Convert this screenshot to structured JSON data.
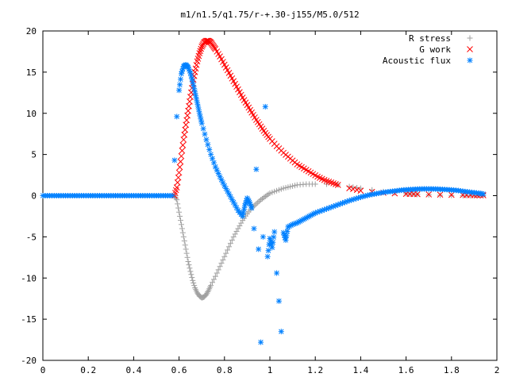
{
  "chart_data": {
    "type": "scatter",
    "title": "m1/n1.5/q1.75/r-+.30-j155/M5.0/512",
    "xlabel": "",
    "ylabel": "",
    "xlim": [
      0,
      2
    ],
    "ylim": [
      -20,
      20
    ],
    "x_ticks": [
      "0",
      "0.2",
      "0.4",
      "0.6",
      "0.8",
      "1",
      "1.2",
      "1.4",
      "1.6",
      "1.8",
      "2"
    ],
    "y_ticks": [
      "20",
      "15",
      "10",
      "5",
      "0",
      "-5",
      "-10",
      "-15",
      "-20"
    ],
    "grid": false,
    "legend_position": "top-right",
    "series": [
      {
        "name": "R stress",
        "marker": "plus",
        "color": "#a0a0a0",
        "points": [
          [
            0.58,
            0
          ],
          [
            0.59,
            -0.5
          ],
          [
            0.6,
            -2.0
          ],
          [
            0.61,
            -3.5
          ],
          [
            0.62,
            -5.0
          ],
          [
            0.63,
            -6.5
          ],
          [
            0.64,
            -8.0
          ],
          [
            0.65,
            -9.2
          ],
          [
            0.66,
            -10.3
          ],
          [
            0.67,
            -11.2
          ],
          [
            0.68,
            -11.8
          ],
          [
            0.69,
            -12.2
          ],
          [
            0.7,
            -12.4
          ],
          [
            0.71,
            -12.3
          ],
          [
            0.72,
            -12.0
          ],
          [
            0.73,
            -11.5
          ],
          [
            0.74,
            -10.9
          ],
          [
            0.76,
            -9.8
          ],
          [
            0.78,
            -8.6
          ],
          [
            0.8,
            -7.4
          ],
          [
            0.82,
            -6.2
          ],
          [
            0.84,
            -5.0
          ],
          [
            0.86,
            -4.0
          ],
          [
            0.88,
            -3.0
          ],
          [
            0.9,
            -2.2
          ],
          [
            0.92,
            -1.5
          ],
          [
            0.94,
            -1.0
          ],
          [
            0.96,
            -0.5
          ],
          [
            0.98,
            -0.1
          ],
          [
            1.0,
            0.3
          ],
          [
            1.03,
            0.6
          ],
          [
            1.06,
            0.9
          ],
          [
            1.09,
            1.1
          ],
          [
            1.12,
            1.3
          ],
          [
            1.16,
            1.4
          ],
          [
            1.2,
            1.4
          ],
          [
            1.25,
            1.4
          ],
          [
            1.3,
            1.3
          ],
          [
            1.35,
            1.1
          ],
          [
            1.4,
            0.9
          ],
          [
            1.45,
            0.7
          ],
          [
            1.5,
            0.5
          ],
          [
            1.55,
            0.35
          ],
          [
            1.6,
            0.25
          ],
          [
            1.65,
            0.15
          ],
          [
            1.7,
            0.1
          ],
          [
            1.75,
            0.05
          ],
          [
            1.8,
            0.03
          ],
          [
            1.85,
            0.02
          ],
          [
            1.9,
            0.01
          ],
          [
            1.94,
            0
          ]
        ]
      },
      {
        "name": "G work",
        "marker": "cross",
        "color": "#ff0000",
        "points": [
          [
            0.58,
            0
          ],
          [
            0.59,
            1.0
          ],
          [
            0.6,
            2.8
          ],
          [
            0.61,
            4.8
          ],
          [
            0.62,
            6.8
          ],
          [
            0.63,
            8.6
          ],
          [
            0.64,
            10.3
          ],
          [
            0.65,
            12.0
          ],
          [
            0.66,
            13.6
          ],
          [
            0.67,
            15.0
          ],
          [
            0.68,
            16.3
          ],
          [
            0.69,
            17.3
          ],
          [
            0.7,
            18.1
          ],
          [
            0.71,
            18.6
          ],
          [
            0.72,
            18.8
          ],
          [
            0.73,
            18.8
          ],
          [
            0.74,
            18.6
          ],
          [
            0.75,
            18.2
          ],
          [
            0.76,
            17.8
          ],
          [
            0.78,
            16.9
          ],
          [
            0.8,
            15.9
          ],
          [
            0.82,
            14.9
          ],
          [
            0.84,
            13.9
          ],
          [
            0.86,
            12.9
          ],
          [
            0.88,
            11.9
          ],
          [
            0.9,
            11.0
          ],
          [
            0.92,
            10.1
          ],
          [
            0.94,
            9.2
          ],
          [
            0.96,
            8.4
          ],
          [
            0.98,
            7.6
          ],
          [
            1.0,
            6.9
          ],
          [
            1.03,
            6.0
          ],
          [
            1.06,
            5.2
          ],
          [
            1.09,
            4.5
          ],
          [
            1.12,
            3.8
          ],
          [
            1.15,
            3.3
          ],
          [
            1.18,
            2.8
          ],
          [
            1.21,
            2.3
          ],
          [
            1.24,
            1.9
          ],
          [
            1.27,
            1.6
          ],
          [
            1.3,
            1.3
          ],
          [
            1.35,
            0.9
          ],
          [
            1.4,
            0.6
          ],
          [
            1.45,
            0.45
          ],
          [
            1.5,
            0.35
          ],
          [
            1.55,
            0.28
          ],
          [
            1.6,
            0.22
          ],
          [
            1.65,
            0.18
          ],
          [
            1.7,
            0.15
          ],
          [
            1.75,
            0.12
          ],
          [
            1.8,
            0.1
          ],
          [
            1.85,
            0.08
          ],
          [
            1.9,
            0.06
          ],
          [
            1.94,
            0.05
          ]
        ]
      },
      {
        "name": "Acoustic flux",
        "marker": "star",
        "color": "#0080ff",
        "points": [
          [
            0.0,
            0
          ],
          [
            0.03,
            0
          ],
          [
            0.06,
            0
          ],
          [
            0.09,
            0
          ],
          [
            0.12,
            0
          ],
          [
            0.15,
            0
          ],
          [
            0.18,
            0
          ],
          [
            0.21,
            0
          ],
          [
            0.24,
            0
          ],
          [
            0.27,
            0
          ],
          [
            0.3,
            0
          ],
          [
            0.33,
            0
          ],
          [
            0.36,
            0
          ],
          [
            0.39,
            0
          ],
          [
            0.42,
            0
          ],
          [
            0.45,
            0
          ],
          [
            0.48,
            0
          ],
          [
            0.51,
            0
          ],
          [
            0.54,
            0
          ],
          [
            0.57,
            0
          ],
          [
            0.58,
            4.3
          ],
          [
            0.59,
            9.6
          ],
          [
            0.6,
            12.8
          ],
          [
            0.61,
            14.8
          ],
          [
            0.62,
            15.7
          ],
          [
            0.63,
            15.9
          ],
          [
            0.64,
            15.6
          ],
          [
            0.65,
            14.9
          ],
          [
            0.66,
            13.8
          ],
          [
            0.67,
            12.6
          ],
          [
            0.68,
            11.3
          ],
          [
            0.69,
            10.0
          ],
          [
            0.7,
            8.8
          ],
          [
            0.72,
            6.8
          ],
          [
            0.74,
            5.0
          ],
          [
            0.76,
            3.5
          ],
          [
            0.78,
            2.3
          ],
          [
            0.8,
            1.2
          ],
          [
            0.82,
            0.2
          ],
          [
            0.84,
            -0.8
          ],
          [
            0.86,
            -1.8
          ],
          [
            0.88,
            -2.5
          ],
          [
            0.89,
            -1.2
          ],
          [
            0.9,
            -0.3
          ],
          [
            0.91,
            -0.8
          ],
          [
            0.92,
            -1.5
          ],
          [
            0.93,
            -4.0
          ],
          [
            0.94,
            3.2
          ],
          [
            0.95,
            -6.5
          ],
          [
            0.96,
            -17.8
          ],
          [
            0.97,
            -5.0
          ],
          [
            0.98,
            10.8
          ],
          [
            0.99,
            -7.4
          ],
          [
            1.0,
            -5.2
          ],
          [
            1.01,
            -6.3
          ],
          [
            1.02,
            -4.4
          ],
          [
            1.03,
            -9.4
          ],
          [
            1.04,
            -12.8
          ],
          [
            1.05,
            -16.5
          ],
          [
            1.06,
            -4.5
          ],
          [
            1.07,
            -5.4
          ],
          [
            1.08,
            -3.8
          ],
          [
            1.1,
            -3.5
          ],
          [
            1.12,
            -3.3
          ],
          [
            1.14,
            -3.0
          ],
          [
            1.16,
            -2.7
          ],
          [
            1.18,
            -2.4
          ],
          [
            1.2,
            -2.1
          ],
          [
            1.23,
            -1.8
          ],
          [
            1.26,
            -1.5
          ],
          [
            1.29,
            -1.2
          ],
          [
            1.32,
            -0.9
          ],
          [
            1.35,
            -0.6
          ],
          [
            1.38,
            -0.35
          ],
          [
            1.41,
            -0.1
          ],
          [
            1.44,
            0.1
          ],
          [
            1.47,
            0.25
          ],
          [
            1.5,
            0.4
          ],
          [
            1.53,
            0.5
          ],
          [
            1.56,
            0.6
          ],
          [
            1.59,
            0.7
          ],
          [
            1.62,
            0.75
          ],
          [
            1.65,
            0.8
          ],
          [
            1.68,
            0.82
          ],
          [
            1.71,
            0.82
          ],
          [
            1.74,
            0.8
          ],
          [
            1.77,
            0.75
          ],
          [
            1.8,
            0.7
          ],
          [
            1.83,
            0.62
          ],
          [
            1.86,
            0.5
          ],
          [
            1.89,
            0.4
          ],
          [
            1.92,
            0.3
          ],
          [
            1.94,
            0.2
          ]
        ]
      }
    ]
  }
}
